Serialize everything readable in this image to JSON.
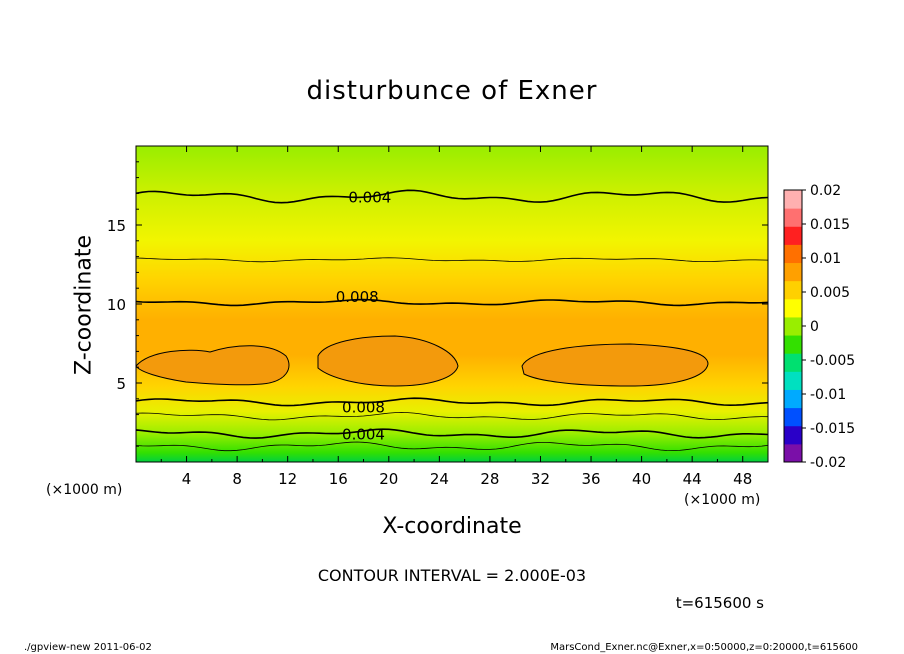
{
  "chart_data": {
    "type": "heatmap",
    "title": "disturbunce of Exner",
    "xlabel": "X-coordinate",
    "ylabel": "Z-coordinate",
    "x_unit": "(×1000 m)",
    "x_ticks": [
      4,
      8,
      12,
      16,
      20,
      24,
      28,
      32,
      36,
      40,
      44,
      48
    ],
    "y_ticks": [
      5,
      10,
      15
    ],
    "xlim": [
      0,
      50
    ],
    "ylim": [
      0,
      20
    ],
    "contour_interval_text": "CONTOUR INTERVAL = 2.000E-03",
    "contour_labels": [
      {
        "x": 18.5,
        "z": 16.8,
        "text": "0.004"
      },
      {
        "x": 17.5,
        "z": 10.5,
        "text": "0.008"
      },
      {
        "x": 18.0,
        "z": 3.5,
        "text": "0.008"
      },
      {
        "x": 18.0,
        "z": 1.8,
        "text": "0.004"
      }
    ],
    "field_profile": [
      {
        "z": 0,
        "value": 0.0005
      },
      {
        "z": 1,
        "value": 0.002
      },
      {
        "z": 2,
        "value": 0.004
      },
      {
        "z": 3,
        "value": 0.006
      },
      {
        "z": 4,
        "value": 0.008
      },
      {
        "z": 5,
        "value": 0.0095
      },
      {
        "z": 6.5,
        "value": 0.0105
      },
      {
        "z": 8,
        "value": 0.0095
      },
      {
        "z": 10,
        "value": 0.008
      },
      {
        "z": 12.5,
        "value": 0.006
      },
      {
        "z": 15,
        "value": 0.0048
      },
      {
        "z": 17,
        "value": 0.004
      },
      {
        "z": 20,
        "value": 0.003
      }
    ],
    "colorbar": {
      "ticks": [
        "0.02",
        "0.015",
        "0.01",
        "0.005",
        "0",
        "-0.005",
        "-0.01",
        "-0.015",
        "-0.02"
      ],
      "range": [
        -0.02,
        0.02
      ],
      "colors": [
        "#7a0fa8",
        "#2a00c8",
        "#0050ff",
        "#00aaff",
        "#00e0c0",
        "#00e070",
        "#33e000",
        "#99ee00",
        "#ffff00",
        "#ffd000",
        "#ffa000",
        "#ff7000",
        "#ff2020",
        "#ff7070",
        "#ffb0b0"
      ]
    }
  },
  "annotations": {
    "time": "t=615600 s",
    "footer_left": "./gpview-new   2011-06-02",
    "footer_right": "MarsCond_Exner.nc@Exner,x=0:50000,z=0:20000,t=615600",
    "unit_left": "(×1000 m)",
    "unit_right": "(×1000 m)"
  }
}
